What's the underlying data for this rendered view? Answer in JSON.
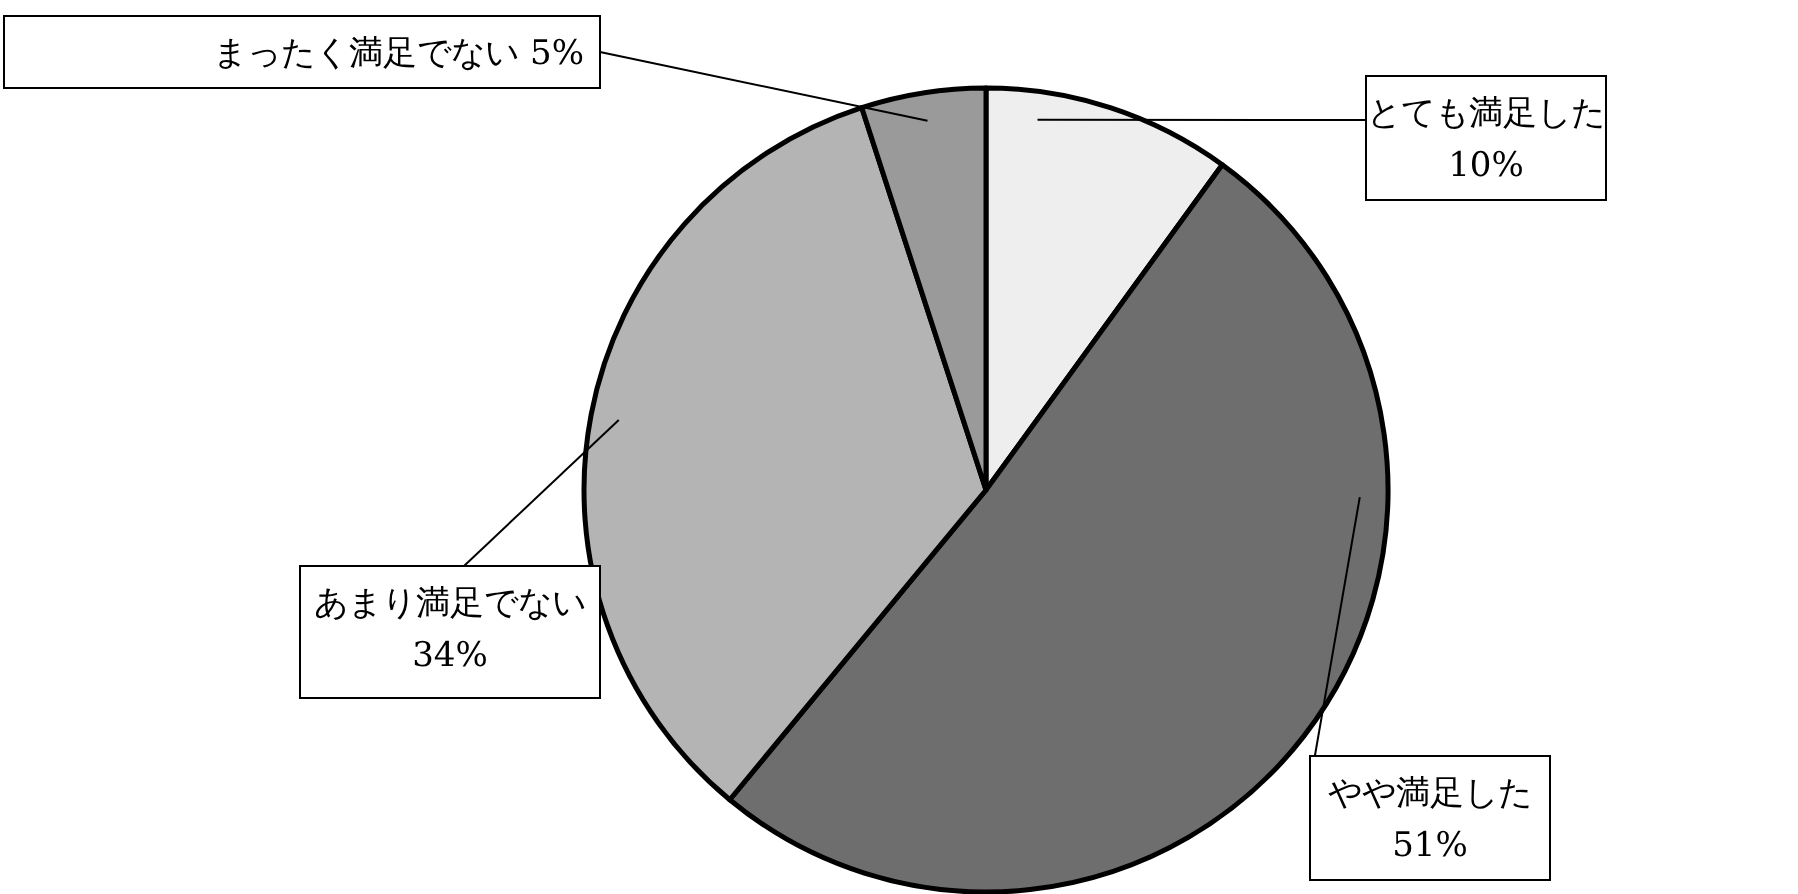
{
  "chart_data": {
    "type": "pie",
    "categories": [
      "とても満足した",
      "やや満足した",
      "あまり満足でない",
      "まったく満足でない"
    ],
    "values": [
      10,
      51,
      34,
      5
    ],
    "value_labels": [
      "10%",
      "51%",
      "34%",
      "5%"
    ],
    "colors": [
      "#eeeeee",
      "#6e6e6e",
      "#b4b4b4",
      "#9a9a9a"
    ],
    "legend": false
  }
}
